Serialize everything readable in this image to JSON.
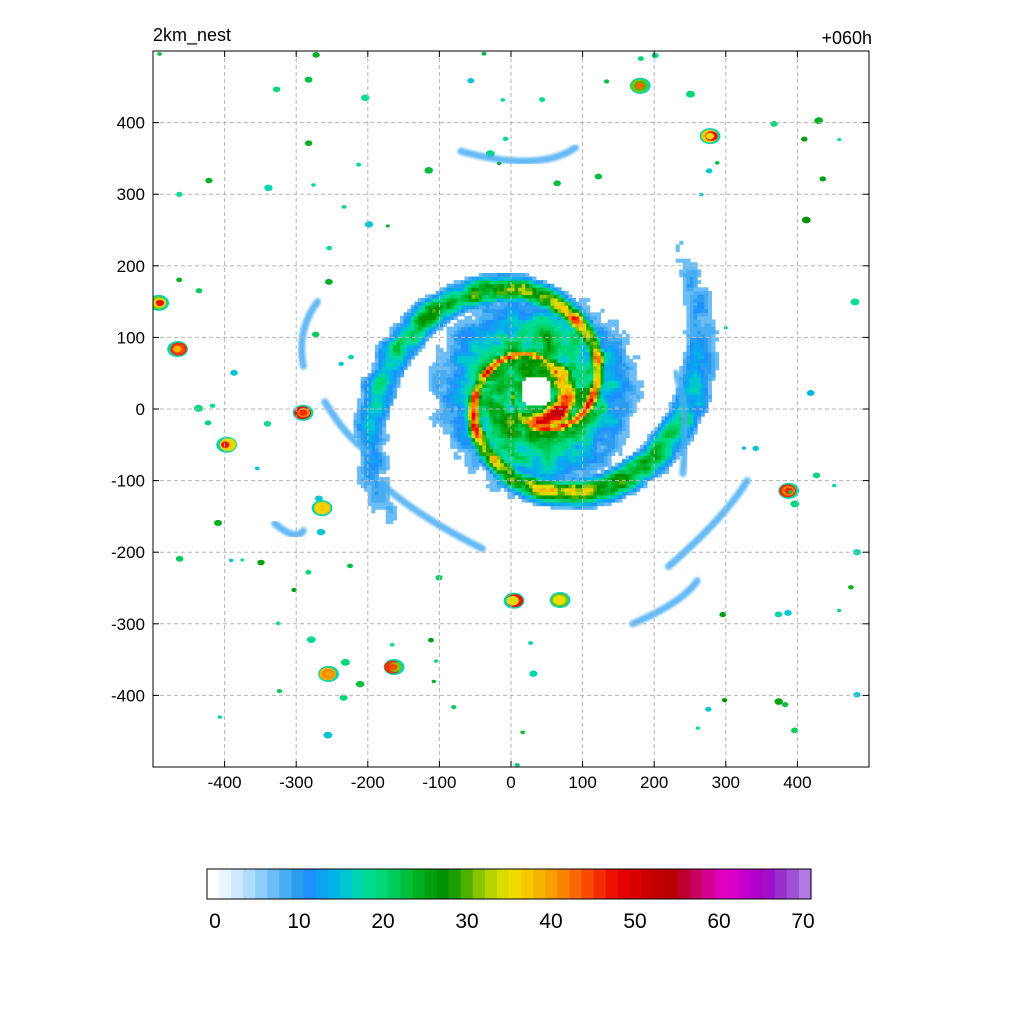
{
  "chart_data": {
    "type": "heatmap",
    "title_left": "2km_nest",
    "title_right": "+060h",
    "xlabel": "",
    "ylabel": "",
    "xlim": [
      -500,
      500
    ],
    "ylim": [
      -500,
      500
    ],
    "xticks": [
      -400,
      -300,
      -200,
      -100,
      0,
      100,
      200,
      300,
      400
    ],
    "yticks": [
      -400,
      -300,
      -200,
      -100,
      0,
      100,
      200,
      300,
      400
    ],
    "xtick_labels": [
      "-400",
      "-300",
      "-200",
      "-100",
      "0",
      "100",
      "200",
      "300",
      "400"
    ],
    "ytick_labels": [
      "-400",
      "-300",
      "-200",
      "-100",
      "0",
      "100",
      "200",
      "300",
      "400"
    ],
    "grid": true,
    "grid_style": "dashed",
    "field": {
      "description_of_structure": "tropical cyclone with clear eye near (35, 25), eyewall and spiral rainbands",
      "eye_center": [
        35,
        25
      ],
      "eye_radius": 22,
      "max_value": 55
    },
    "colorbar": {
      "range": [
        0,
        70
      ],
      "tick_values": [
        0,
        10,
        20,
        30,
        40,
        50,
        60,
        70
      ],
      "tick_labels": [
        "0",
        "10",
        "20",
        "30",
        "40",
        "50",
        "60",
        "70"
      ],
      "colors": [
        "#ffffff",
        "#e8f4ff",
        "#cde8ff",
        "#b0dcff",
        "#8ecdfa",
        "#6cbdf5",
        "#48adf2",
        "#2a9df0",
        "#1e90ff",
        "#0fa2f0",
        "#00b4e6",
        "#00c6d2",
        "#00d4b0",
        "#00dc92",
        "#00d878",
        "#00cc5a",
        "#00bf3c",
        "#00b020",
        "#00a010",
        "#009000",
        "#1a9e00",
        "#50b000",
        "#86c400",
        "#b8d400",
        "#dade00",
        "#f0dc00",
        "#f5c800",
        "#f7b400",
        "#f89e00",
        "#f88400",
        "#f86800",
        "#f84a00",
        "#f42c00",
        "#ee1200",
        "#e60000",
        "#d80000",
        "#cc0000",
        "#c00000",
        "#b80000",
        "#bc0030",
        "#c80060",
        "#d60090",
        "#e000b8",
        "#d800c8",
        "#c400cc",
        "#b000cc",
        "#a010c8",
        "#9a30cc",
        "#a050d8",
        "#b07ae6"
      ]
    }
  }
}
